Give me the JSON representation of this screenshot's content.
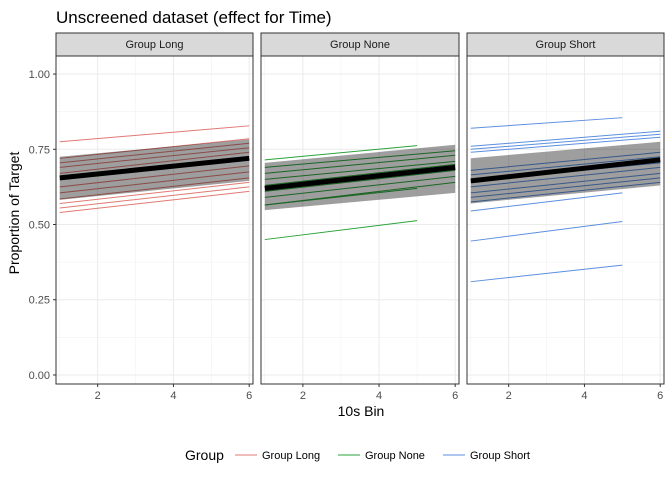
{
  "chart_data": {
    "type": "line",
    "title": "Unscreened dataset (effect for Time)",
    "xlabel": "10s Bin",
    "ylabel": "Proportion of Target",
    "xlim": [
      0.9,
      6.1
    ],
    "ylim": [
      -0.03,
      1.06
    ],
    "xticks": [
      2,
      4,
      6
    ],
    "xtick_labels": [
      "2",
      "4",
      "6"
    ],
    "yticks": [
      0,
      0.25,
      0.5,
      0.75,
      1.0
    ],
    "ytick_labels": [
      "0.00",
      "0.25",
      "0.50",
      "0.75",
      "1.00"
    ],
    "grid": true,
    "legend": {
      "title": "Group",
      "position": "bottom",
      "entries": [
        {
          "label": "Group Long",
          "color": "#e07a73"
        },
        {
          "label": "Group None",
          "color": "#2aa33a"
        },
        {
          "label": "Group Short",
          "color": "#5b8fe0"
        }
      ]
    },
    "panels": [
      {
        "strip_label": "Group Long",
        "color": "#e07a73",
        "fit": {
          "x": [
            1,
            6
          ],
          "y": [
            0.655,
            0.72
          ]
        },
        "ribbon": {
          "x": [
            1,
            6
          ],
          "lower": [
            0.582,
            0.645
          ],
          "upper": [
            0.725,
            0.783
          ]
        },
        "participants": [
          {
            "x": [
              1,
              6
            ],
            "y": [
              0.775,
              0.828
            ]
          },
          {
            "x": [
              1,
              6
            ],
            "y": [
              0.72,
              0.785
            ]
          },
          {
            "x": [
              1,
              6
            ],
            "y": [
              0.705,
              0.77
            ]
          },
          {
            "x": [
              1,
              6
            ],
            "y": [
              0.69,
              0.755
            ]
          },
          {
            "x": [
              1,
              6
            ],
            "y": [
              0.67,
              0.74
            ]
          },
          {
            "x": [
              1,
              6
            ],
            "y": [
              0.65,
              0.715
            ]
          },
          {
            "x": [
              1,
              6
            ],
            "y": [
              0.625,
              0.695
            ]
          },
          {
            "x": [
              1,
              6
            ],
            "y": [
              0.605,
              0.675
            ]
          },
          {
            "x": [
              1,
              6
            ],
            "y": [
              0.585,
              0.655
            ]
          },
          {
            "x": [
              1,
              6
            ],
            "y": [
              0.57,
              0.64
            ]
          },
          {
            "x": [
              1,
              6
            ],
            "y": [
              0.555,
              0.625
            ]
          },
          {
            "x": [
              1,
              6
            ],
            "y": [
              0.54,
              0.61
            ]
          }
        ]
      },
      {
        "strip_label": "Group None",
        "color": "#2aa33a",
        "fit": {
          "x": [
            1,
            6
          ],
          "y": [
            0.62,
            0.69
          ]
        },
        "ribbon": {
          "x": [
            1,
            6
          ],
          "lower": [
            0.548,
            0.605
          ],
          "upper": [
            0.705,
            0.765
          ]
        },
        "participants": [
          {
            "x": [
              1,
              5
            ],
            "y": [
              0.715,
              0.762
            ]
          },
          {
            "x": [
              1,
              6
            ],
            "y": [
              0.69,
              0.745
            ]
          },
          {
            "x": [
              1,
              6
            ],
            "y": [
              0.67,
              0.73
            ]
          },
          {
            "x": [
              1,
              6
            ],
            "y": [
              0.65,
              0.71
            ]
          },
          {
            "x": [
              1,
              6
            ],
            "y": [
              0.63,
              0.7
            ]
          },
          {
            "x": [
              1,
              6
            ],
            "y": [
              0.61,
              0.68
            ]
          },
          {
            "x": [
              1,
              6
            ],
            "y": [
              0.59,
              0.66
            ]
          },
          {
            "x": [
              1,
              5
            ],
            "y": [
              0.565,
              0.62
            ]
          },
          {
            "x": [
              1,
              6
            ],
            "y": [
              0.565,
              0.64
            ]
          },
          {
            "x": [
              1,
              5
            ],
            "y": [
              0.45,
              0.513
            ]
          }
        ]
      },
      {
        "strip_label": "Group Short",
        "color": "#5b8fe0",
        "fit": {
          "x": [
            1,
            6
          ],
          "y": [
            0.645,
            0.715
          ]
        },
        "ribbon": {
          "x": [
            1,
            6
          ],
          "lower": [
            0.57,
            0.63
          ],
          "upper": [
            0.72,
            0.775
          ]
        },
        "participants": [
          {
            "x": [
              1,
              5
            ],
            "y": [
              0.82,
              0.855
            ]
          },
          {
            "x": [
              1,
              6
            ],
            "y": [
              0.76,
              0.81
            ]
          },
          {
            "x": [
              1,
              6
            ],
            "y": [
              0.75,
              0.8
            ]
          },
          {
            "x": [
              1,
              6
            ],
            "y": [
              0.74,
              0.79
            ]
          },
          {
            "x": [
              1,
              6
            ],
            "y": [
              0.68,
              0.74
            ]
          },
          {
            "x": [
              1,
              6
            ],
            "y": [
              0.665,
              0.725
            ]
          },
          {
            "x": [
              1,
              6
            ],
            "y": [
              0.645,
              0.705
            ]
          },
          {
            "x": [
              1,
              6
            ],
            "y": [
              0.625,
              0.69
            ]
          },
          {
            "x": [
              1,
              6
            ],
            "y": [
              0.605,
              0.67
            ]
          },
          {
            "x": [
              1,
              6
            ],
            "y": [
              0.59,
              0.655
            ]
          },
          {
            "x": [
              1,
              6
            ],
            "y": [
              0.575,
              0.64
            ]
          },
          {
            "x": [
              1,
              5
            ],
            "y": [
              0.545,
              0.605
            ]
          },
          {
            "x": [
              1,
              5
            ],
            "y": [
              0.445,
              0.51
            ]
          },
          {
            "x": [
              1,
              5
            ],
            "y": [
              0.31,
              0.365
            ]
          }
        ]
      }
    ]
  }
}
